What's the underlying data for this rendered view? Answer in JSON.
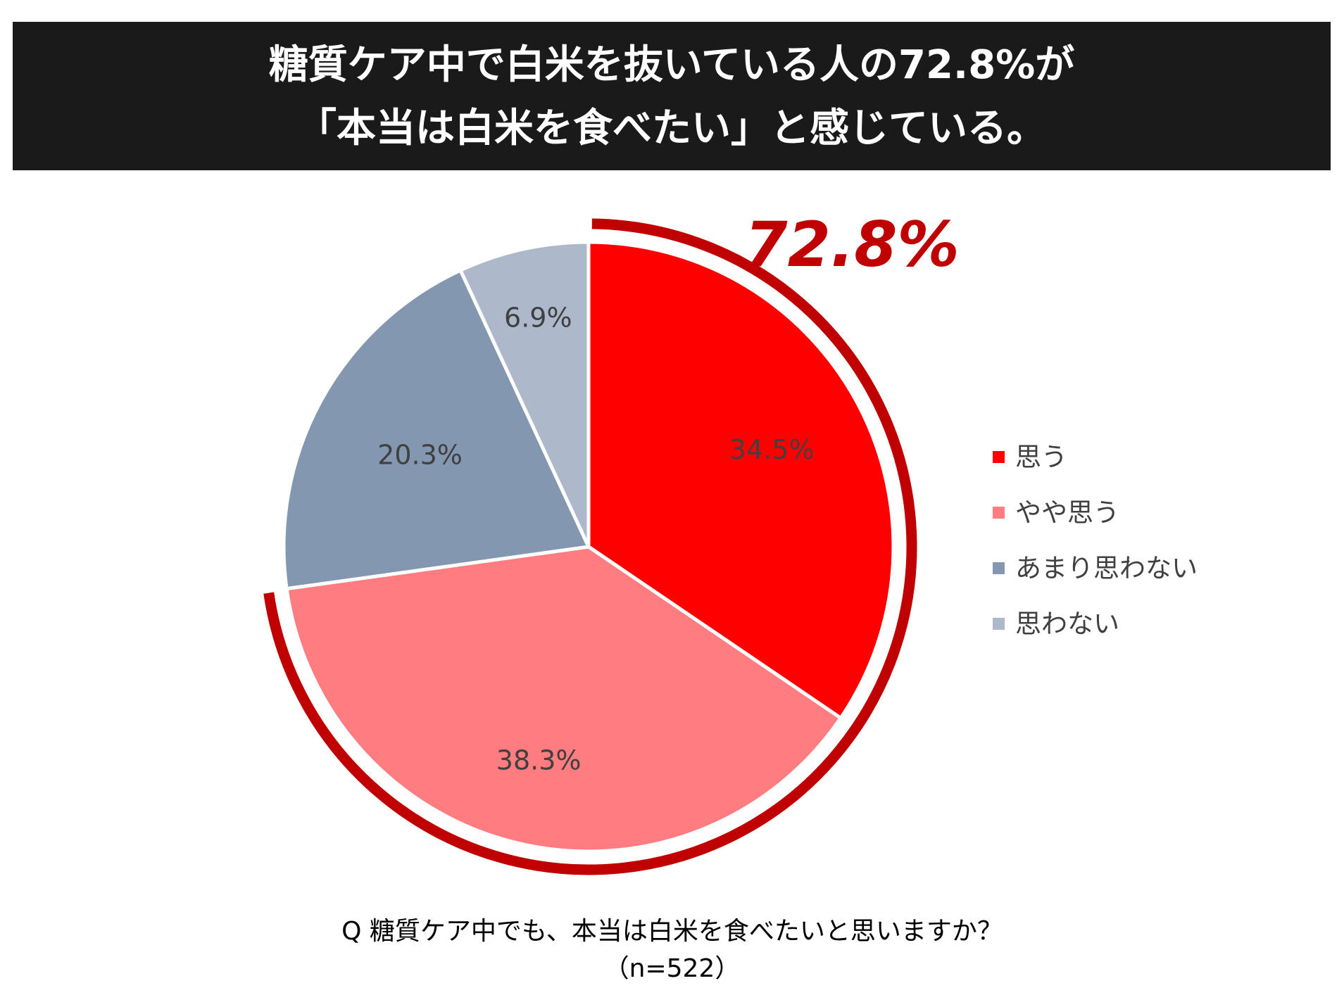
{
  "title": {
    "line1": "糖質ケア中で白米を抜いている人の72.8%が",
    "line2": "「本当は白米を食べたい」と感じている。"
  },
  "highlight": {
    "value": "72.8%",
    "color": "#c00000"
  },
  "chart_data": {
    "type": "pie",
    "categories": [
      "思う",
      "やや思う",
      "あまり思わない",
      "思わない"
    ],
    "values": [
      34.5,
      38.3,
      20.3,
      6.9
    ],
    "labels": [
      "34.5%",
      "38.3%",
      "20.3%",
      "6.9%"
    ],
    "colors": [
      "#ff0000",
      "#ff7c80",
      "#8497b0",
      "#adb9ca"
    ],
    "start_angle_deg": 0,
    "direction": "clockwise",
    "legend_position": "right"
  },
  "legend": {
    "items": [
      {
        "label": "思う",
        "color": "#ff0000"
      },
      {
        "label": "やや思う",
        "color": "#ff7c80"
      },
      {
        "label": "あまり思わない",
        "color": "#8497b0"
      },
      {
        "label": "思わない",
        "color": "#adb9ca"
      }
    ]
  },
  "footer": {
    "question": "Q 糖質ケア中でも、本当は白米を食べたいと思いますか？",
    "sample_size": "（n=522）"
  }
}
